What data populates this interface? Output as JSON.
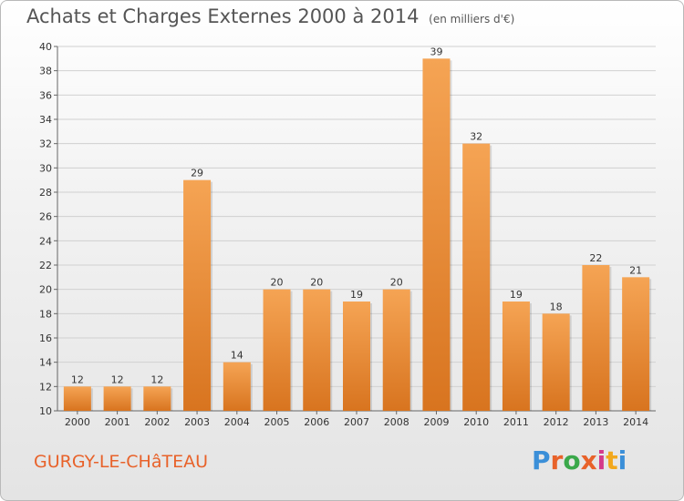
{
  "header": {
    "title": "Achats et Charges Externes 2000 à 2014",
    "unit": "(en milliers d'€)"
  },
  "footer": {
    "city": "GURGY-LE-CHâTEAU",
    "brand_letters": [
      "P",
      "r",
      "o",
      "x",
      "i",
      "t",
      "i"
    ],
    "brand_colors": [
      "#3b8fd8",
      "#e8622a",
      "#3aa84a",
      "#e8622a",
      "#d43a8a",
      "#f2a81d",
      "#3b8fd8"
    ]
  },
  "colors": {
    "bar_top": "#f5a454",
    "bar_bottom": "#d8741f",
    "grid": "#d0d0d0",
    "text": "#333333"
  },
  "chart_data": {
    "type": "bar",
    "title": "Achats et Charges Externes 2000 à 2014",
    "subtitle": "(en milliers d'€)",
    "categories": [
      "2000",
      "2001",
      "2002",
      "2003",
      "2004",
      "2005",
      "2006",
      "2007",
      "2008",
      "2009",
      "2010",
      "2011",
      "2012",
      "2013",
      "2014"
    ],
    "values": [
      12,
      12,
      12,
      29,
      14,
      20,
      20,
      19,
      20,
      39,
      32,
      19,
      18,
      22,
      21
    ],
    "data_labels": [
      "12",
      "12",
      "12",
      "29",
      "14",
      "20",
      "20",
      "19",
      "20",
      "39",
      "32",
      "19",
      "18",
      "22",
      "21"
    ],
    "ylim": [
      10,
      40
    ],
    "yticks": [
      10,
      12,
      14,
      16,
      18,
      20,
      22,
      24,
      26,
      28,
      30,
      32,
      34,
      36,
      38,
      40
    ],
    "ytick_labels": [
      "10",
      "12",
      "14",
      "16",
      "18",
      "20",
      "22",
      "24",
      "26",
      "28",
      "30",
      "32",
      "34",
      "36",
      "38",
      "40"
    ],
    "grid": true,
    "legend": "none"
  }
}
